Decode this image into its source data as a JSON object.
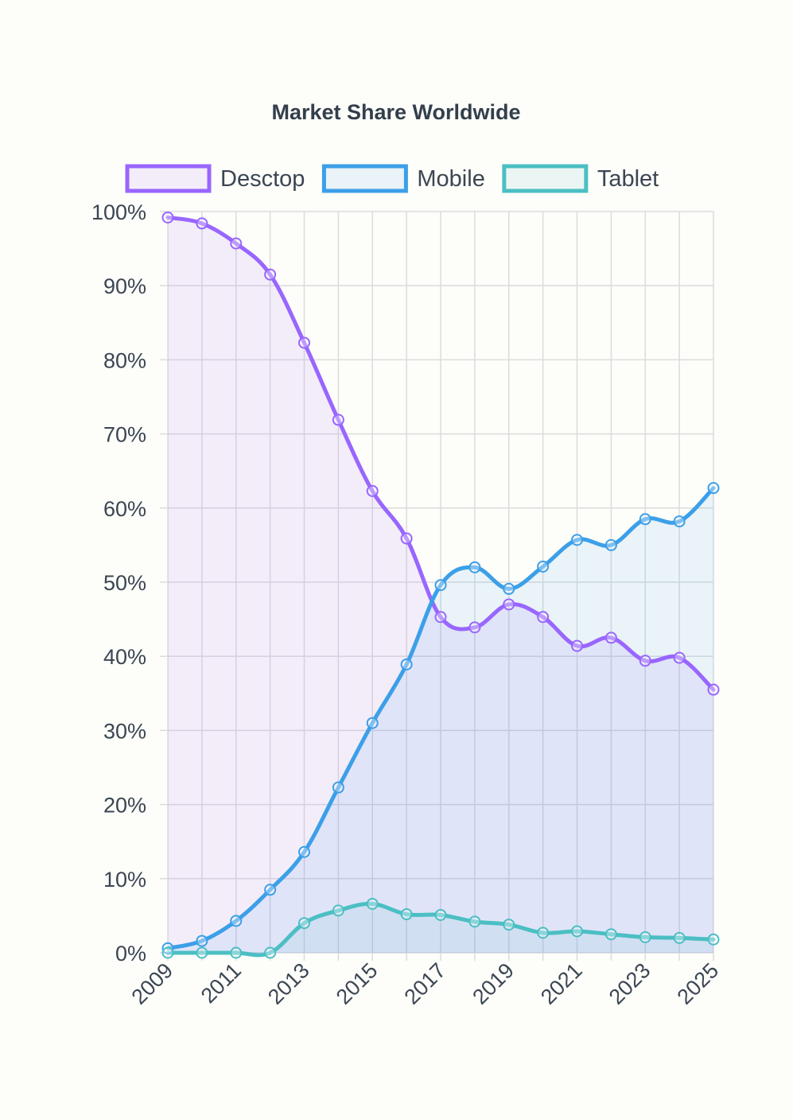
{
  "chart_data": {
    "type": "line",
    "title": "Market Share Worldwide",
    "xlabel": "",
    "ylabel": "",
    "x": [
      2009,
      2010,
      2011,
      2012,
      2013,
      2014,
      2015,
      2016,
      2017,
      2018,
      2019,
      2020,
      2021,
      2022,
      2023,
      2024,
      2025
    ],
    "x_tick_labels": [
      "2009",
      "2011",
      "2013",
      "2015",
      "2017",
      "2019",
      "2021",
      "2023",
      "2025"
    ],
    "x_tick_values": [
      2009,
      2011,
      2013,
      2015,
      2017,
      2019,
      2021,
      2023,
      2025
    ],
    "xlim": [
      2009,
      2025
    ],
    "ylim": [
      0,
      100
    ],
    "y_ticks": [
      0,
      10,
      20,
      30,
      40,
      50,
      60,
      70,
      80,
      90,
      100
    ],
    "y_tick_format": "%",
    "grid": true,
    "legend_position": "top",
    "filled": true,
    "smooth": true,
    "series": [
      {
        "name": "Desctop",
        "color": "#9966ff",
        "fill": "rgba(153,102,255,0.10)",
        "values": [
          99.2,
          98.4,
          95.7,
          91.5,
          82.3,
          71.9,
          62.3,
          55.9,
          45.3,
          43.9,
          47.0,
          45.3,
          41.4,
          42.5,
          39.4,
          39.8,
          35.5
        ]
      },
      {
        "name": "Mobile",
        "color": "#3c9fe8",
        "fill": "rgba(60,159,232,0.10)",
        "values": [
          0.6,
          1.6,
          4.3,
          8.5,
          13.6,
          22.3,
          31.0,
          38.9,
          49.6,
          52.0,
          49.1,
          52.1,
          55.7,
          55.0,
          58.5,
          58.2,
          62.7
        ]
      },
      {
        "name": "Tablet",
        "color": "#4bbfc3",
        "fill": "rgba(75,191,195,0.10)",
        "values": [
          0.0,
          0.0,
          0.0,
          0.0,
          4.0,
          5.7,
          6.6,
          5.2,
          5.1,
          4.2,
          3.8,
          2.7,
          2.9,
          2.5,
          2.1,
          2.0,
          1.8
        ]
      }
    ]
  }
}
